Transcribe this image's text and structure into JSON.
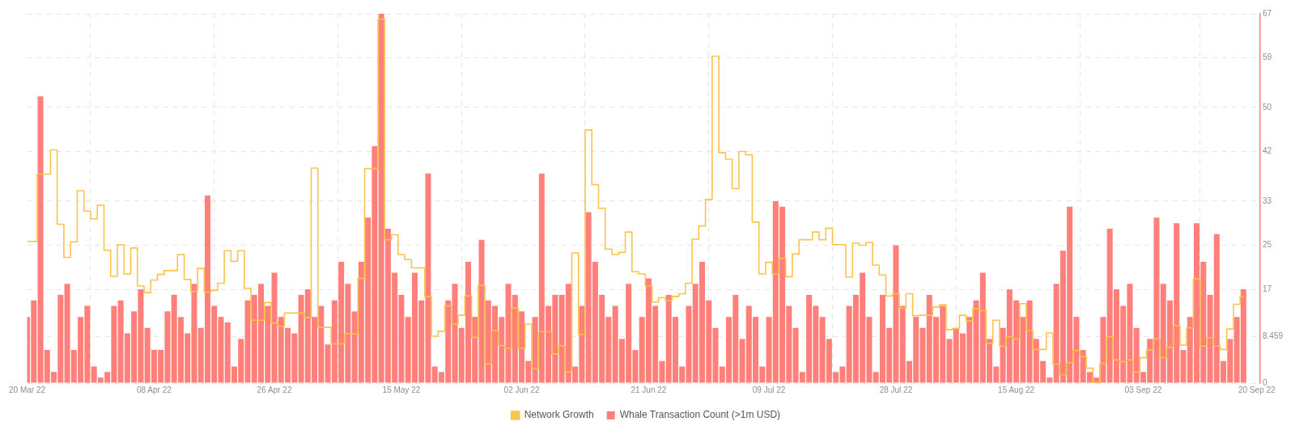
{
  "chart_data": {
    "type": "bar",
    "legend": "bottom",
    "grid": true,
    "marker": "none",
    "x": [
      "2022-03-20",
      "2022-03-21",
      "2022-03-22",
      "2022-03-23",
      "2022-03-24",
      "2022-03-25",
      "2022-03-26",
      "2022-03-27",
      "2022-03-28",
      "2022-03-29",
      "2022-03-30",
      "2022-03-31",
      "2022-04-01",
      "2022-04-02",
      "2022-04-03",
      "2022-04-04",
      "2022-04-05",
      "2022-04-06",
      "2022-04-07",
      "2022-04-08",
      "2022-04-09",
      "2022-04-10",
      "2022-04-11",
      "2022-04-12",
      "2022-04-13",
      "2022-04-14",
      "2022-04-15",
      "2022-04-16",
      "2022-04-17",
      "2022-04-18",
      "2022-04-19",
      "2022-04-20",
      "2022-04-21",
      "2022-04-22",
      "2022-04-23",
      "2022-04-24",
      "2022-04-25",
      "2022-04-26",
      "2022-04-27",
      "2022-04-28",
      "2022-04-29",
      "2022-04-30",
      "2022-05-01",
      "2022-05-02",
      "2022-05-03",
      "2022-05-04",
      "2022-05-05",
      "2022-05-06",
      "2022-05-07",
      "2022-05-08",
      "2022-05-09",
      "2022-05-10",
      "2022-05-11",
      "2022-05-12",
      "2022-05-13",
      "2022-05-14",
      "2022-05-15",
      "2022-05-16",
      "2022-05-17",
      "2022-05-18",
      "2022-05-19",
      "2022-05-20",
      "2022-05-21",
      "2022-05-22",
      "2022-05-23",
      "2022-05-24",
      "2022-05-25",
      "2022-05-26",
      "2022-05-27",
      "2022-05-28",
      "2022-05-29",
      "2022-05-30",
      "2022-05-31",
      "2022-06-01",
      "2022-06-02",
      "2022-06-03",
      "2022-06-04",
      "2022-06-05",
      "2022-06-06",
      "2022-06-07",
      "2022-06-08",
      "2022-06-09",
      "2022-06-10",
      "2022-06-11",
      "2022-06-12",
      "2022-06-13",
      "2022-06-14",
      "2022-06-15",
      "2022-06-16",
      "2022-06-17",
      "2022-06-18",
      "2022-06-19",
      "2022-06-20",
      "2022-06-21",
      "2022-06-22",
      "2022-06-23",
      "2022-06-24",
      "2022-06-25",
      "2022-06-26",
      "2022-06-27",
      "2022-06-28",
      "2022-06-29",
      "2022-06-30",
      "2022-07-01",
      "2022-07-02",
      "2022-07-03",
      "2022-07-04",
      "2022-07-05",
      "2022-07-06",
      "2022-07-07",
      "2022-07-08",
      "2022-07-09",
      "2022-07-10",
      "2022-07-11",
      "2022-07-12",
      "2022-07-13",
      "2022-07-14",
      "2022-07-15",
      "2022-07-16",
      "2022-07-17",
      "2022-07-18",
      "2022-07-19",
      "2022-07-20",
      "2022-07-21",
      "2022-07-22",
      "2022-07-23",
      "2022-07-24",
      "2022-07-25",
      "2022-07-26",
      "2022-07-27",
      "2022-07-28",
      "2022-07-29",
      "2022-07-30",
      "2022-07-31",
      "2022-08-01",
      "2022-08-02",
      "2022-08-03",
      "2022-08-04",
      "2022-08-05",
      "2022-08-06",
      "2022-08-07",
      "2022-08-08",
      "2022-08-09",
      "2022-08-10",
      "2022-08-11",
      "2022-08-12",
      "2022-08-13",
      "2022-08-14",
      "2022-08-15",
      "2022-08-16",
      "2022-08-17",
      "2022-08-18",
      "2022-08-19",
      "2022-08-20",
      "2022-08-21",
      "2022-08-22",
      "2022-08-23",
      "2022-08-24",
      "2022-08-25",
      "2022-08-26",
      "2022-08-27",
      "2022-08-28",
      "2022-08-29",
      "2022-08-30",
      "2022-08-31",
      "2022-09-01",
      "2022-09-02",
      "2022-09-03",
      "2022-09-04",
      "2022-09-05",
      "2022-09-06",
      "2022-09-07",
      "2022-09-08",
      "2022-09-09",
      "2022-09-10",
      "2022-09-11",
      "2022-09-12",
      "2022-09-13",
      "2022-09-14",
      "2022-09-15",
      "2022-09-16",
      "2022-09-17",
      "2022-09-18"
    ],
    "xlim": [
      "2022-03-20",
      "2022-09-20T12:00"
    ],
    "xticks": [
      {
        "value": "2022-03-20",
        "label": "20 Mar 22"
      },
      {
        "value": "2022-04-08",
        "label": "08 Apr 22"
      },
      {
        "value": "2022-04-26",
        "label": "26 Apr 22"
      },
      {
        "value": "2022-05-15",
        "label": "15 May 22"
      },
      {
        "value": "2022-06-02",
        "label": "02 Jun 22"
      },
      {
        "value": "2022-06-21",
        "label": "21 Jun 22"
      },
      {
        "value": "2022-07-09",
        "label": "09 Jul 22"
      },
      {
        "value": "2022-07-28",
        "label": "28 Jul 22"
      },
      {
        "value": "2022-08-15",
        "label": "15 Aug 22"
      },
      {
        "value": "2022-09-03",
        "label": "03 Sep 22"
      },
      {
        "value": "2022-09-20",
        "label": "20 Sep 22"
      }
    ],
    "ylim": [
      0,
      67
    ],
    "yticks": [
      0,
      8.459,
      17,
      25,
      33,
      42,
      50,
      59,
      67
    ],
    "series": [
      {
        "name": "Network Growth",
        "type": "step",
        "color": "#f9c34c",
        "values": [
          25.7,
          25.7,
          37.9,
          37.9,
          42.3,
          28.8,
          22.8,
          25.6,
          34.9,
          31.2,
          29.8,
          32.3,
          24.1,
          19.4,
          25.1,
          19.8,
          24.5,
          17.6,
          16.4,
          18.7,
          19.7,
          20.4,
          20.4,
          23.3,
          18.8,
          16.6,
          20.8,
          16.5,
          16.8,
          18.1,
          24.0,
          22.1,
          24.0,
          17.2,
          11.4,
          11.4,
          14.6,
          10.9,
          10.3,
          12.7,
          12.7,
          12.7,
          11.9,
          39.0,
          10.1,
          10.1,
          7.1,
          7.1,
          8.9,
          8.9,
          19.0,
          38.9,
          38.9,
          66,
          26.0,
          26.9,
          23.3,
          22.4,
          20.9,
          20.9,
          15.7,
          8.5,
          9.4,
          14.0,
          10.7,
          12.3,
          15.8,
          8.3,
          17.7,
          3.5,
          9.5,
          6.8,
          6.3,
          13.6,
          6.3,
          10.7,
          2.6,
          9.3,
          9.3,
          5.3,
          6.7,
          2.0,
          23.6,
          8.8,
          45.9,
          36.0,
          31.7,
          24.3,
          23.3,
          23.7,
          27.4,
          20.2,
          19.8,
          17.6,
          14.7,
          15.5,
          15.0,
          15.7,
          16.2,
          18.1,
          26.1,
          28.5,
          33.3,
          59.3,
          41.8,
          40.6,
          35.3,
          42.0,
          41.4,
          29.2,
          19.8,
          21.9,
          19.8,
          22.6,
          19.3,
          23.4,
          26.0,
          26.0,
          27.4,
          26.0,
          28.1,
          25.1,
          25.1,
          19.2,
          25.4,
          25.0,
          25.5,
          21.4,
          19.6,
          15.8,
          16.2,
          13.6,
          16.2,
          12.2,
          12.3,
          12.3,
          13.8,
          14.2,
          9.7,
          9.9,
          12.3,
          11.3,
          13.5,
          13.2,
          7.2,
          11.4,
          6.7,
          8.4,
          8.0,
          14.4,
          9.5,
          6.1,
          6.1,
          9.1,
          3.4,
          1.5,
          3.7,
          5.9,
          4.8,
          2.7,
          0.1,
          3.6,
          8.4,
          4.2,
          3.9,
          4.2,
          2.0,
          4.6,
          6.0,
          8.0,
          4.6,
          6.5,
          10.4,
          6.9,
          10.0,
          18.9,
          6.7,
          8.2,
          6.7,
          6.1,
          9.8,
          14.3,
          15.7
        ]
      },
      {
        "name": "Whale Transaction Count (>1m USD)",
        "color": "#ff7f7a",
        "values": [
          12,
          15,
          52,
          6,
          2,
          16,
          18,
          6,
          12,
          14,
          3,
          1,
          2,
          14,
          15,
          9,
          13,
          17,
          10,
          6,
          6,
          13,
          16,
          12,
          9,
          18,
          10,
          34,
          14,
          12,
          11,
          3,
          8,
          15,
          16,
          18,
          14,
          20,
          12,
          10,
          9,
          16,
          17,
          12,
          14,
          7,
          15,
          22,
          18,
          13,
          22,
          30,
          43,
          67,
          28,
          20,
          16,
          12,
          20,
          15,
          38,
          3,
          2,
          15,
          18,
          10,
          22,
          12,
          26,
          15,
          14,
          12,
          18,
          16,
          13,
          4,
          12,
          38,
          14,
          16,
          16,
          18,
          3,
          14,
          31,
          22,
          16,
          12,
          14,
          8,
          18,
          6,
          12,
          19,
          14,
          4,
          16,
          12,
          3,
          14,
          18,
          22,
          15,
          10,
          3,
          12,
          16,
          8,
          14,
          12,
          3,
          12,
          33,
          32,
          14,
          10,
          2,
          16,
          14,
          12,
          8,
          2,
          3,
          14,
          16,
          20,
          12,
          2,
          16,
          10,
          25,
          14,
          4,
          12,
          10,
          16,
          12,
          14,
          8,
          10,
          9,
          12,
          15,
          20,
          8,
          3,
          10,
          17,
          15,
          12,
          15,
          8,
          4,
          1,
          18,
          24,
          32,
          12,
          6,
          2,
          1,
          12,
          28,
          17,
          14,
          18,
          10,
          2,
          8,
          30,
          18,
          15,
          29,
          6,
          12,
          29,
          22,
          16,
          27,
          4,
          8,
          12,
          17
        ]
      }
    ]
  }
}
